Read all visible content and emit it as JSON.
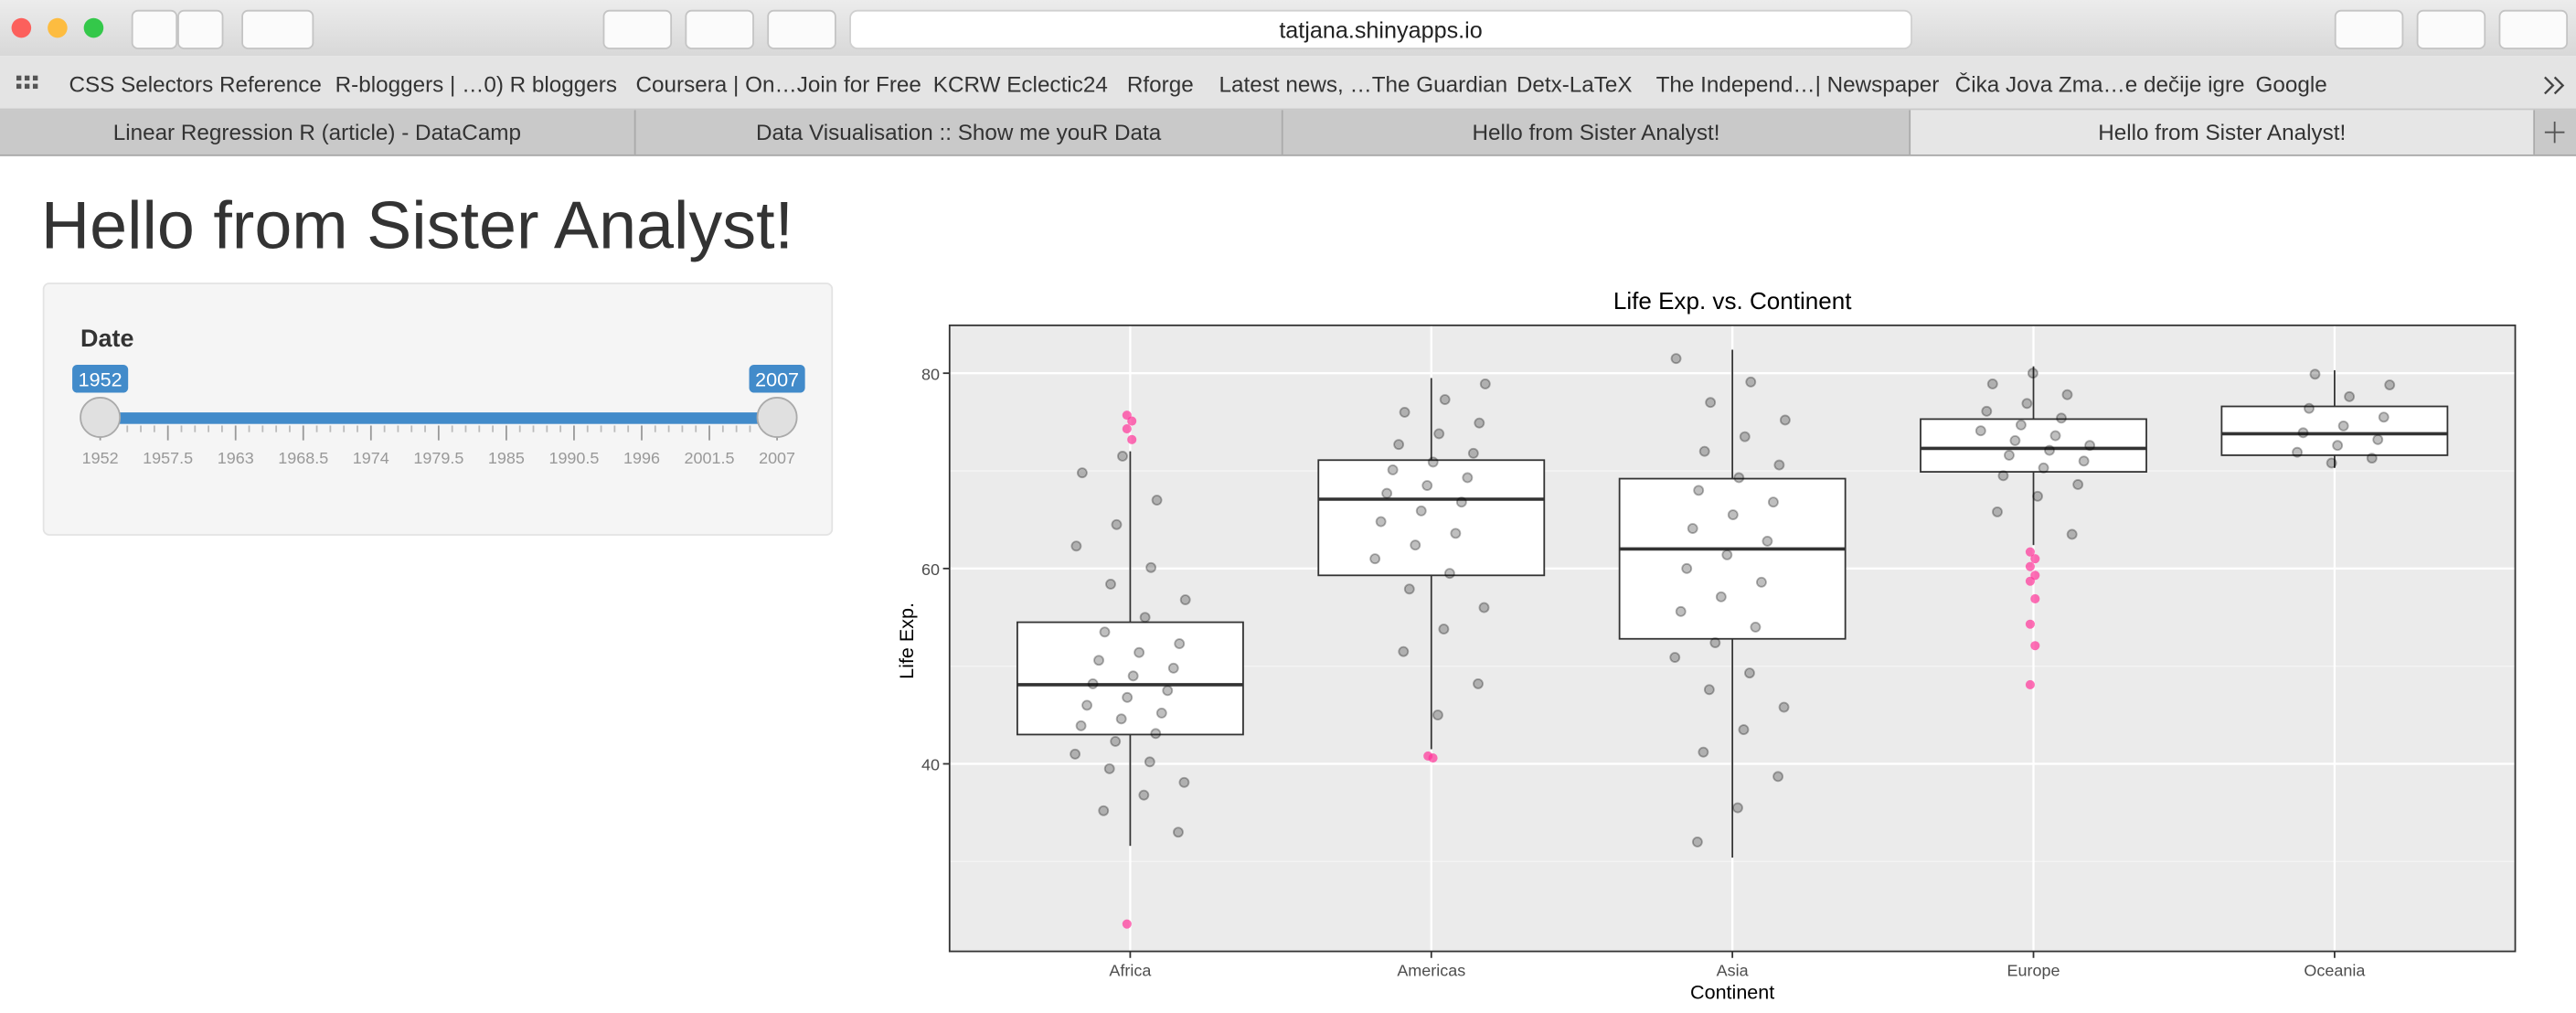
{
  "browser": {
    "url": "tatjana.shinyapps.io",
    "bookmarks": [
      "CSS Selectors Reference",
      "R-bloggers | …0) R bloggers",
      "Coursera | On…Join for Free",
      "KCRW Eclectic24",
      "Rforge",
      "Latest news, …The Guardian",
      "Detx-LaTeX",
      "The Independ…| Newspaper",
      "Čika Jova Zma…e dečije igre",
      "Google"
    ],
    "tabs": [
      "Linear Regression R (article) - DataCamp",
      "Data Visualisation :: Show me youR Data",
      "Hello from Sister Analyst!",
      "Hello from Sister Analyst!"
    ],
    "active_tab": 3
  },
  "app": {
    "title": "Hello from Sister Analyst!",
    "slider": {
      "label": "Date",
      "min": 1952,
      "max": 2007,
      "from": 1952,
      "to": 2007,
      "ticks": [
        1952,
        1957.5,
        1963,
        1968.5,
        1974,
        1979.5,
        1985,
        1990.5,
        1996,
        2001.5,
        2007
      ],
      "color": "#428bca"
    }
  },
  "chart_data": {
    "type": "box",
    "title": "Life Exp. vs. Continent",
    "x_label": "Continent",
    "y_label": "Life Exp.",
    "categories": [
      "Africa",
      "Americas",
      "Asia",
      "Europe",
      "Oceania"
    ],
    "boxes": [
      {
        "whislo": 31.6,
        "q1": 43.0,
        "med": 48.1,
        "q3": 54.5,
        "whishi": 72.0
      },
      {
        "whislo": 41.5,
        "q1": 59.3,
        "med": 67.1,
        "q3": 71.1,
        "whishi": 79.5
      },
      {
        "whislo": 30.4,
        "q1": 52.8,
        "med": 62.0,
        "q3": 69.2,
        "whishi": 82.4
      },
      {
        "whislo": 62.4,
        "q1": 69.9,
        "med": 72.3,
        "q3": 75.3,
        "whishi": 80.7
      },
      {
        "whislo": 70.3,
        "q1": 71.6,
        "med": 73.8,
        "q3": 76.6,
        "whishi": 80.3
      }
    ],
    "outliers": [
      [
        75.7,
        75.1,
        74.3,
        73.2,
        23.6
      ],
      [
        40.8,
        40.6
      ],
      [],
      [
        61.7,
        61.0,
        60.2,
        59.3,
        58.7,
        56.9,
        54.3,
        52.1,
        48.1
      ],
      []
    ],
    "points": [
      [
        33.0,
        35.2,
        36.8,
        38.1,
        39.5,
        40.2,
        41.0,
        42.3,
        43.1,
        43.9,
        44.6,
        45.2,
        46.0,
        46.8,
        47.5,
        48.2,
        49.0,
        49.8,
        50.6,
        51.4,
        52.3,
        53.5,
        55.0,
        56.8,
        58.4,
        60.1,
        62.3,
        64.5,
        67.0,
        69.8,
        71.5
      ],
      [
        45.0,
        48.2,
        51.5,
        53.8,
        56.0,
        57.9,
        59.5,
        61.0,
        62.4,
        63.6,
        64.8,
        65.9,
        66.8,
        67.7,
        68.5,
        69.3,
        70.1,
        70.9,
        71.8,
        72.7,
        73.8,
        74.9,
        76.0,
        77.3,
        78.9
      ],
      [
        32.0,
        35.5,
        38.7,
        41.2,
        43.5,
        45.8,
        47.6,
        49.3,
        50.9,
        52.4,
        54.0,
        55.6,
        57.1,
        58.6,
        60.0,
        61.4,
        62.8,
        64.1,
        65.5,
        66.8,
        68.0,
        69.3,
        70.6,
        72.0,
        73.5,
        75.2,
        77.0,
        79.1,
        81.5
      ],
      [
        63.5,
        65.8,
        67.4,
        68.6,
        69.5,
        70.3,
        71.0,
        71.6,
        72.1,
        72.6,
        73.1,
        73.6,
        74.1,
        74.7,
        75.4,
        76.1,
        76.9,
        77.8,
        78.9,
        80.0
      ],
      [
        70.8,
        71.3,
        71.9,
        72.6,
        73.2,
        73.9,
        74.6,
        75.5,
        76.4,
        77.6,
        78.8,
        79.9
      ]
    ],
    "point_color": "#000000",
    "outlier_color": "#ff3399",
    "box_fill": "#ffffff",
    "panel_color": "#ebebeb",
    "ylim": [
      20.8,
      84.9
    ],
    "yticks": [
      40,
      60,
      80
    ],
    "yminor": [
      30,
      50,
      70
    ],
    "grid": true
  }
}
